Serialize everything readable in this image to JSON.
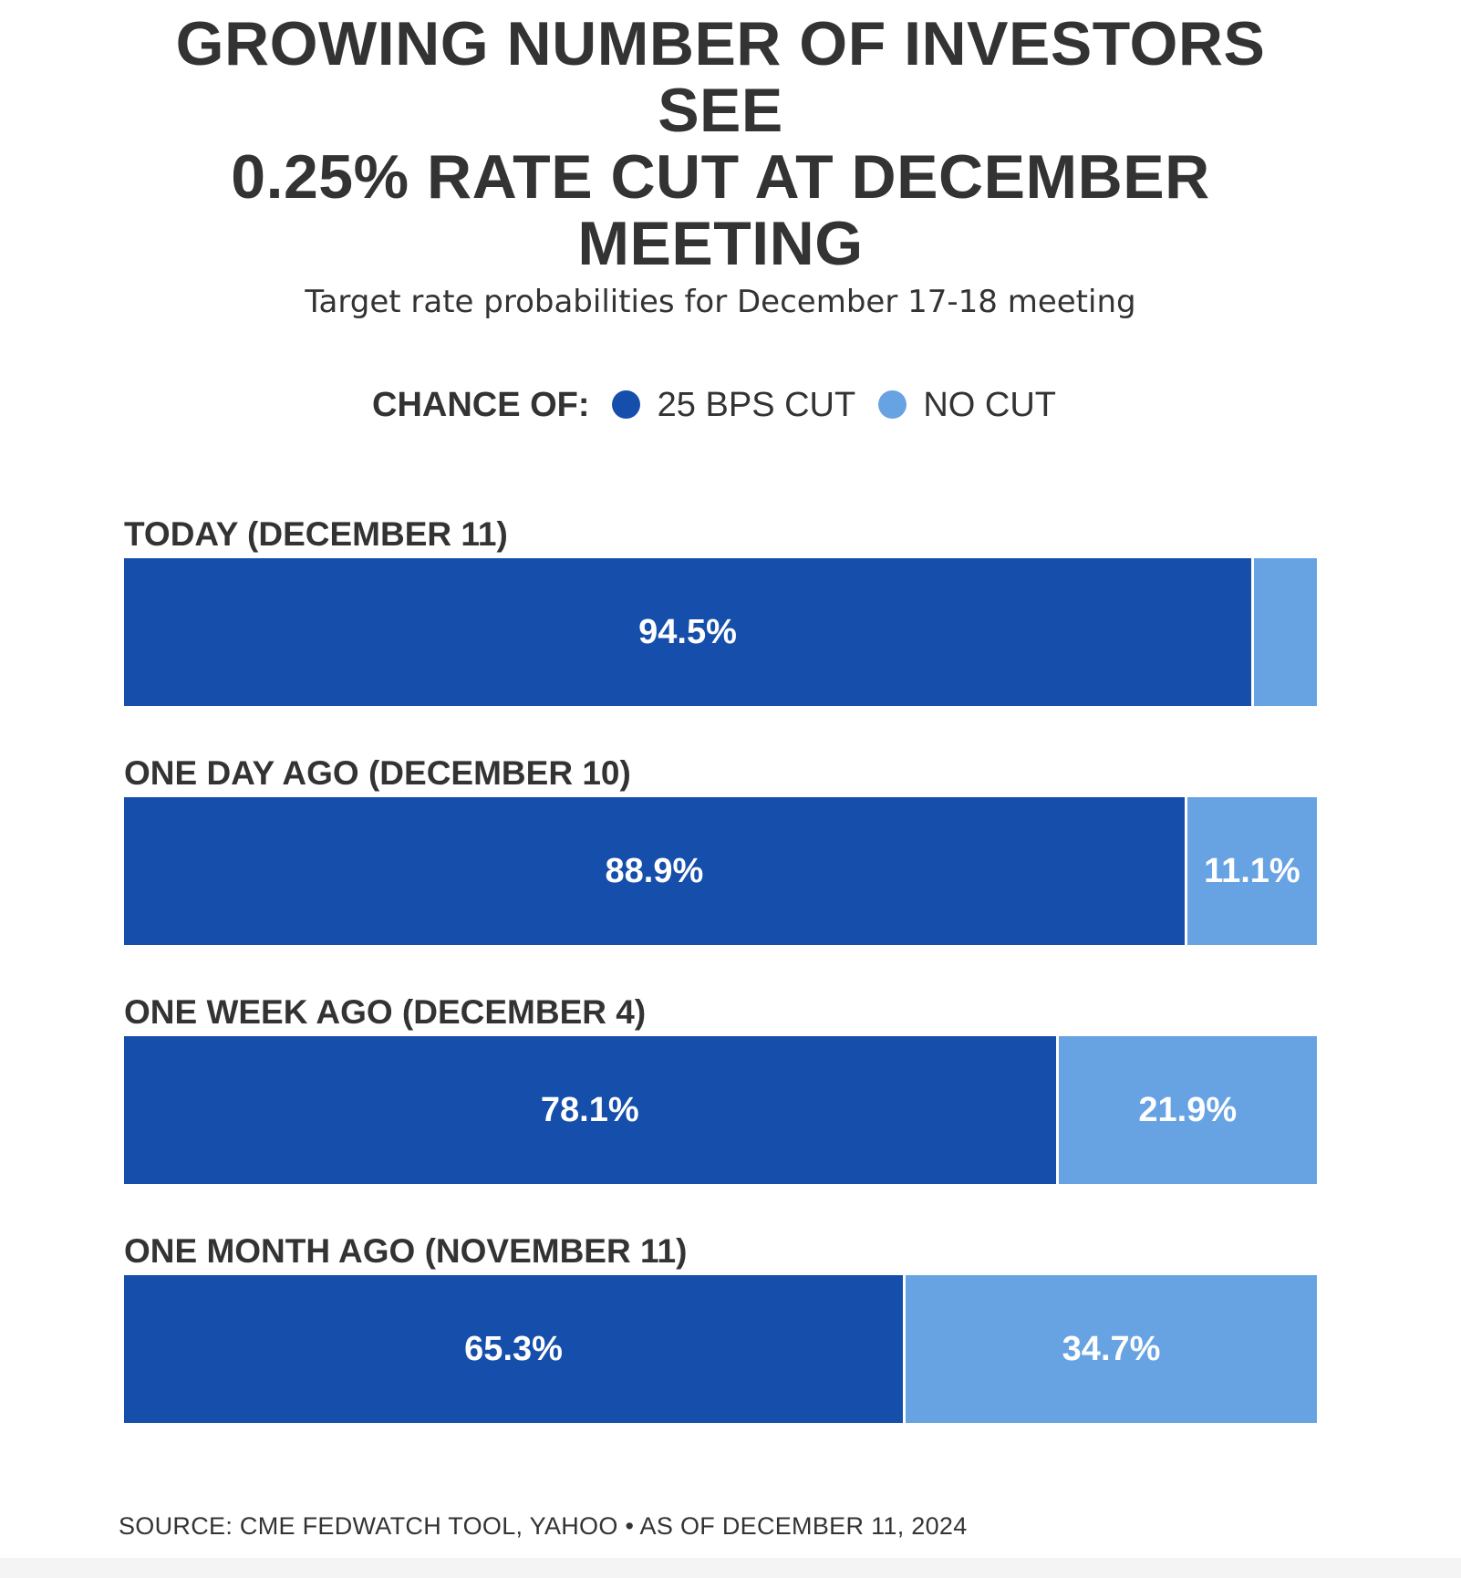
{
  "title_lines": [
    "GROWING NUMBER OF INVESTORS",
    "SEE",
    "0.25% RATE CUT AT DECEMBER",
    "MEETING"
  ],
  "subtitle": "Target rate probabilities for December 17-18 meeting",
  "legend": {
    "prefix": "CHANCE OF:",
    "items": [
      {
        "label": "25 BPS CUT",
        "color": "#164eab"
      },
      {
        "label": "NO CUT",
        "color": "#67a3e3"
      }
    ]
  },
  "source": "SOURCE: CME FEDWATCH TOOL, YAHOO • AS OF DECEMBER 11, 2024",
  "chart_data": {
    "type": "bar",
    "orientation": "horizontal",
    "stacked": true,
    "categories": [
      "TODAY (DECEMBER 11)",
      "ONE DAY AGO (DECEMBER 10)",
      "ONE WEEK AGO (DECEMBER 4)",
      "ONE MONTH AGO (NOVEMBER 11)"
    ],
    "series": [
      {
        "name": "25 BPS CUT",
        "color": "#164eab",
        "values": [
          94.5,
          88.9,
          78.1,
          65.3
        ],
        "labels": [
          "94.5%",
          "88.9%",
          "78.1%",
          "65.3%"
        ]
      },
      {
        "name": "NO CUT",
        "color": "#67a3e3",
        "values": [
          5.5,
          11.1,
          21.9,
          34.7
        ],
        "labels": [
          "",
          "11.1%",
          "21.9%",
          "34.7%"
        ]
      }
    ],
    "xlim": [
      0,
      100
    ],
    "unit": "%"
  }
}
